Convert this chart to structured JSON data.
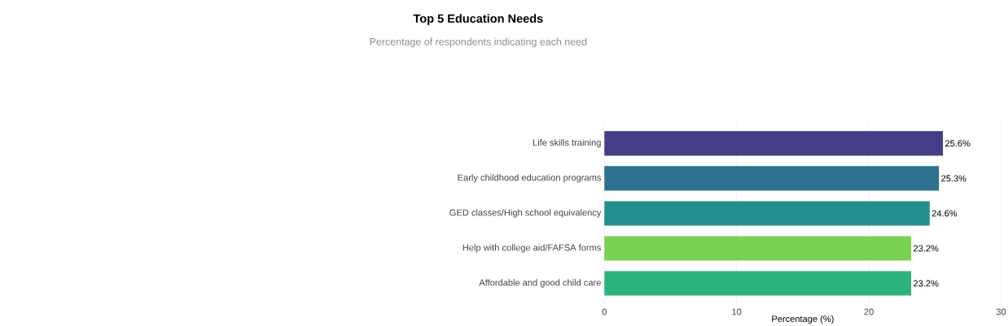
{
  "chart_data": {
    "type": "bar",
    "orientation": "horizontal",
    "title": "Top 5 Education Needs",
    "subtitle": "Percentage of respondents indicating each need",
    "xlabel": "Percentage (%)",
    "categories": [
      "Life skills training",
      "Early childhood education programs",
      "GED classes/High school equivalency",
      "Help with college aid/FAFSA forms",
      "Affordable and good child care"
    ],
    "values": [
      25.6,
      25.3,
      24.6,
      23.2,
      23.2
    ],
    "colors": [
      "#433e85",
      "#2c728e",
      "#21908d",
      "#7ad151",
      "#2db27d"
    ],
    "value_labels": [
      "25.6%",
      "25.3%",
      "24.6%",
      "23.2%",
      "23.2%"
    ],
    "xlim": [
      0,
      30
    ],
    "xticks": [
      0,
      10,
      20,
      30
    ],
    "grid": "x"
  }
}
